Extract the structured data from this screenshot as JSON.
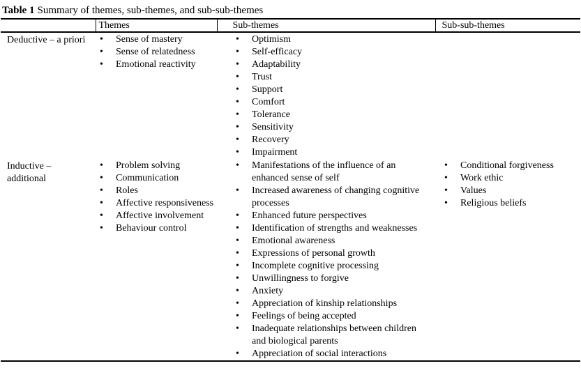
{
  "caption": {
    "label": "Table 1",
    "text": "Summary of themes, sub-themes, and sub-sub-themes"
  },
  "table": {
    "headers": [
      "",
      "Themes",
      "Sub-themes",
      "Sub-sub-themes"
    ],
    "rows": [
      {
        "category": "Deductive – a priori",
        "themes": [
          "Sense of mastery",
          "Sense of relatedness",
          "Emotional reactivity"
        ],
        "sub_themes": [
          "Optimism",
          "Self-efficacy",
          "Adaptability",
          "Trust",
          "Support",
          "Comfort",
          "Tolerance",
          "Sensitivity",
          "Recovery",
          "Impairment"
        ],
        "sub_sub_themes": []
      },
      {
        "category": "Inductive – additional",
        "themes": [
          "Problem solving",
          "Communication",
          "Roles",
          "Affective responsiveness",
          "Affective involvement",
          "Behaviour control"
        ],
        "sub_themes": [
          "Manifestations of the influence of an enhanced sense of self",
          "Increased awareness of changing cognitive processes",
          "Enhanced future perspectives",
          "Identification of strengths and weaknesses",
          "Emotional awareness",
          "Expressions of personal growth",
          "Incomplete cognitive processing",
          "Unwillingness to forgive",
          "Anxiety",
          "Appreciation of kinship relationships",
          "Feelings of being accepted",
          "Inadequate relationships between children and biological parents",
          "Appreciation of social interactions"
        ],
        "sub_sub_themes": [
          "Conditional forgiveness",
          "Work ethic",
          "Values",
          "Religious beliefs"
        ]
      }
    ]
  }
}
